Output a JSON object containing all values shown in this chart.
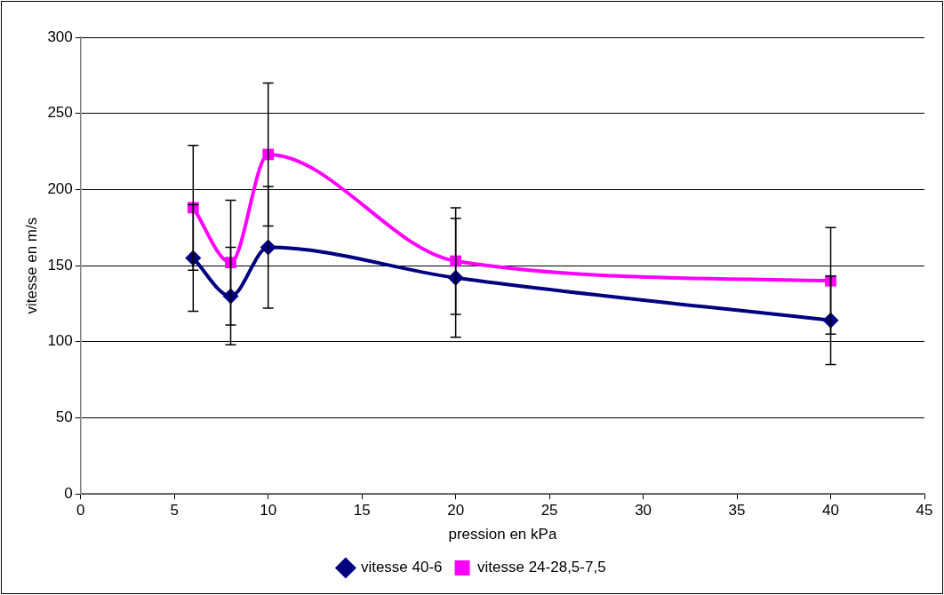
{
  "chart_data": {
    "type": "line",
    "xlabel": "pression en kPa",
    "ylabel": "vitesse en m/s",
    "x": [
      6,
      8,
      10,
      20,
      40
    ],
    "series": [
      {
        "name": "vitesse 40-6",
        "color": "#000080",
        "marker": "diamond",
        "values": [
          155,
          130,
          162,
          142,
          114
        ],
        "errors": [
          35,
          32,
          40,
          39,
          29
        ]
      },
      {
        "name": "vitesse 24-28,5-7,5",
        "color": "#ff00ff",
        "marker": "square",
        "values": [
          188,
          152,
          223,
          153,
          140
        ],
        "errors": [
          41,
          41,
          47,
          35,
          35
        ]
      }
    ],
    "xlim": [
      0,
      45
    ],
    "xticks": [
      0,
      5,
      10,
      15,
      20,
      25,
      30,
      35,
      40,
      45
    ],
    "ylim": [
      0,
      300
    ],
    "yticks": [
      0,
      50,
      100,
      150,
      200,
      250,
      300
    ],
    "grid": "y",
    "legend": "bottom",
    "line_style": "solid"
  }
}
